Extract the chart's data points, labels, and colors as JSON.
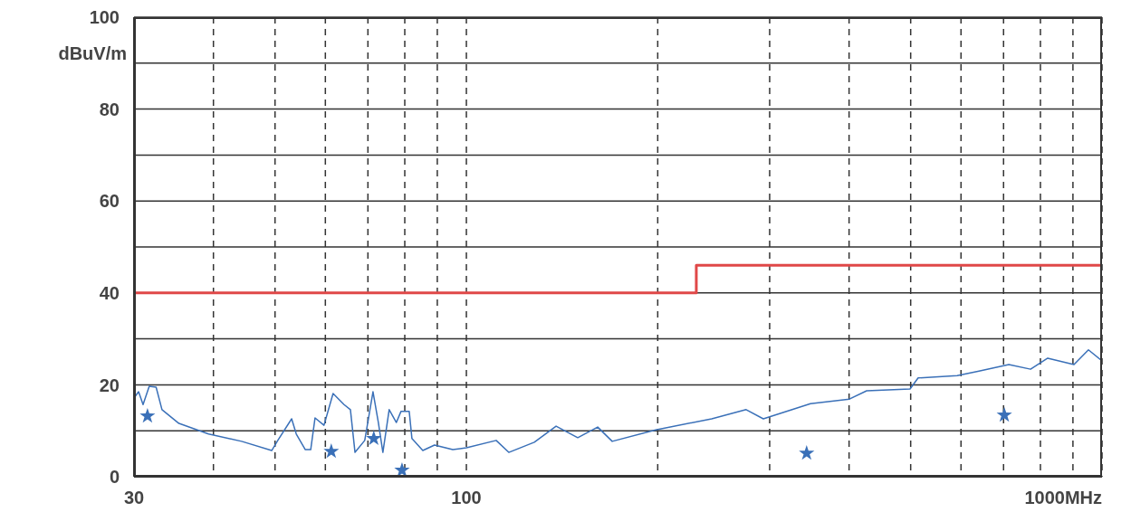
{
  "chart_data": {
    "type": "line",
    "ylabel": "dBuV/m",
    "log": "x",
    "grid": true,
    "xlim": [
      30,
      1000
    ],
    "xticks": [
      30,
      {
        "value": 40,
        "label": null
      },
      {
        "value": 50,
        "label": null
      },
      {
        "value": 60,
        "label": null
      },
      {
        "value": 70,
        "label": null
      },
      {
        "value": 80,
        "label": null
      },
      {
        "value": 90,
        "label": null
      },
      100,
      {
        "value": 200,
        "label": null
      },
      {
        "value": 300,
        "label": null
      },
      {
        "value": 400,
        "label": null
      },
      {
        "value": 500,
        "label": null
      },
      {
        "value": 600,
        "label": null
      },
      {
        "value": 700,
        "label": null
      },
      {
        "value": 800,
        "label": null
      },
      {
        "value": 900,
        "label": null
      },
      {
        "value": 1000,
        "label": "1000MHz"
      }
    ],
    "ylim": [
      0,
      100
    ],
    "yticks": [
      0,
      {
        "value": 10,
        "label": null
      },
      20,
      {
        "value": 30,
        "label": null
      },
      40,
      {
        "value": 50,
        "label": null
      },
      60,
      {
        "value": 70,
        "label": null
      },
      80,
      {
        "value": 90,
        "label": null
      },
      100
    ],
    "series": [
      {
        "type": "step",
        "color": "#e04848",
        "marker": "none",
        "x": [
          30,
          230,
          1000
        ],
        "values": [
          40,
          46,
          46
        ]
      },
      {
        "color": "#3a70b8",
        "marker": "none",
        "x": [
          30,
          30.5,
          31.0,
          31.7,
          32.5,
          33.2,
          35.3,
          39.3,
          44.3,
          49.4,
          50.5,
          53.1,
          54.0,
          55.8,
          56.9,
          57.8,
          59.7,
          61.7,
          64.2,
          65.7,
          66.8,
          69.2,
          71.3,
          72.7,
          73.9,
          75.6,
          77.6,
          78.9,
          81.3,
          82.1,
          85.4,
          89.1,
          95.2,
          100,
          111.4,
          116.6,
          127.9,
          138.4,
          149.7,
          160.9,
          169.6,
          198.5,
          243.2,
          275.5,
          293.2,
          347.8,
          400.5,
          426.3,
          498.9,
          513.7,
          591.7,
          640.3,
          713.5,
          771.9,
          821.4,
          903.4,
          952.0,
          1000
        ],
        "values": [
          17.1,
          18.5,
          15.7,
          19.7,
          19.5,
          14.6,
          11.6,
          9.3,
          7.7,
          5.7,
          7.9,
          12.6,
          9.3,
          5.9,
          5.9,
          12.8,
          11.2,
          18.1,
          15.7,
          14.6,
          5.3,
          7.9,
          18.5,
          11.8,
          5.3,
          14.6,
          11.8,
          14.2,
          14.2,
          8.3,
          5.7,
          6.9,
          5.9,
          6.3,
          7.9,
          5.3,
          7.5,
          11.0,
          8.5,
          10.8,
          7.7,
          10.2,
          12.6,
          14.6,
          12.6,
          15.9,
          16.9,
          18.7,
          19.1,
          21.5,
          22.0,
          23.0,
          24.4,
          23.4,
          25.8,
          24.4,
          27.6,
          25.2
        ]
      },
      {
        "type": "scatter",
        "color": "#3a70b8",
        "marker": "star",
        "x": [
          31.5,
          61.3,
          71.5,
          79.2,
          343,
          702
        ],
        "values": [
          13.2,
          5.5,
          8.3,
          1.4,
          5.1,
          13.4
        ]
      }
    ]
  }
}
